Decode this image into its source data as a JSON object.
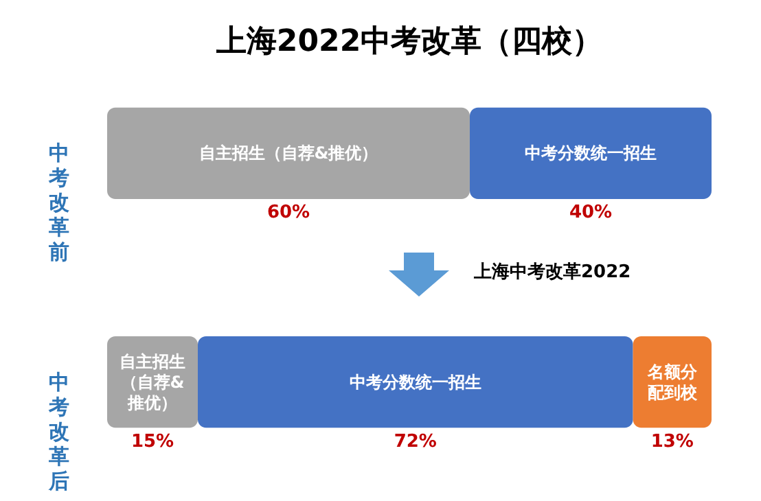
{
  "chart_data": {
    "type": "bar",
    "orientation": "horizontal",
    "stacked": true,
    "title": "上海2022中考改革（四校）",
    "categories": [
      "中考改革前",
      "中考改革后"
    ],
    "series": [
      {
        "name": "自主招生（自荐&推优）",
        "color": "#a6a6a6",
        "values": [
          60,
          15
        ],
        "value_labels": [
          "60%",
          "15%"
        ]
      },
      {
        "name": "中考分数统一招生",
        "color": "#4472c4",
        "values": [
          40,
          72
        ],
        "value_labels": [
          "40%",
          "72%"
        ]
      },
      {
        "name": "名额分配到校",
        "color": "#ed7d31",
        "values": [
          null,
          13
        ],
        "value_labels": [
          null,
          "13%"
        ]
      }
    ],
    "tick_labels": "y",
    "legend": false,
    "annotations": [
      "上海中考改革2022"
    ]
  }
}
